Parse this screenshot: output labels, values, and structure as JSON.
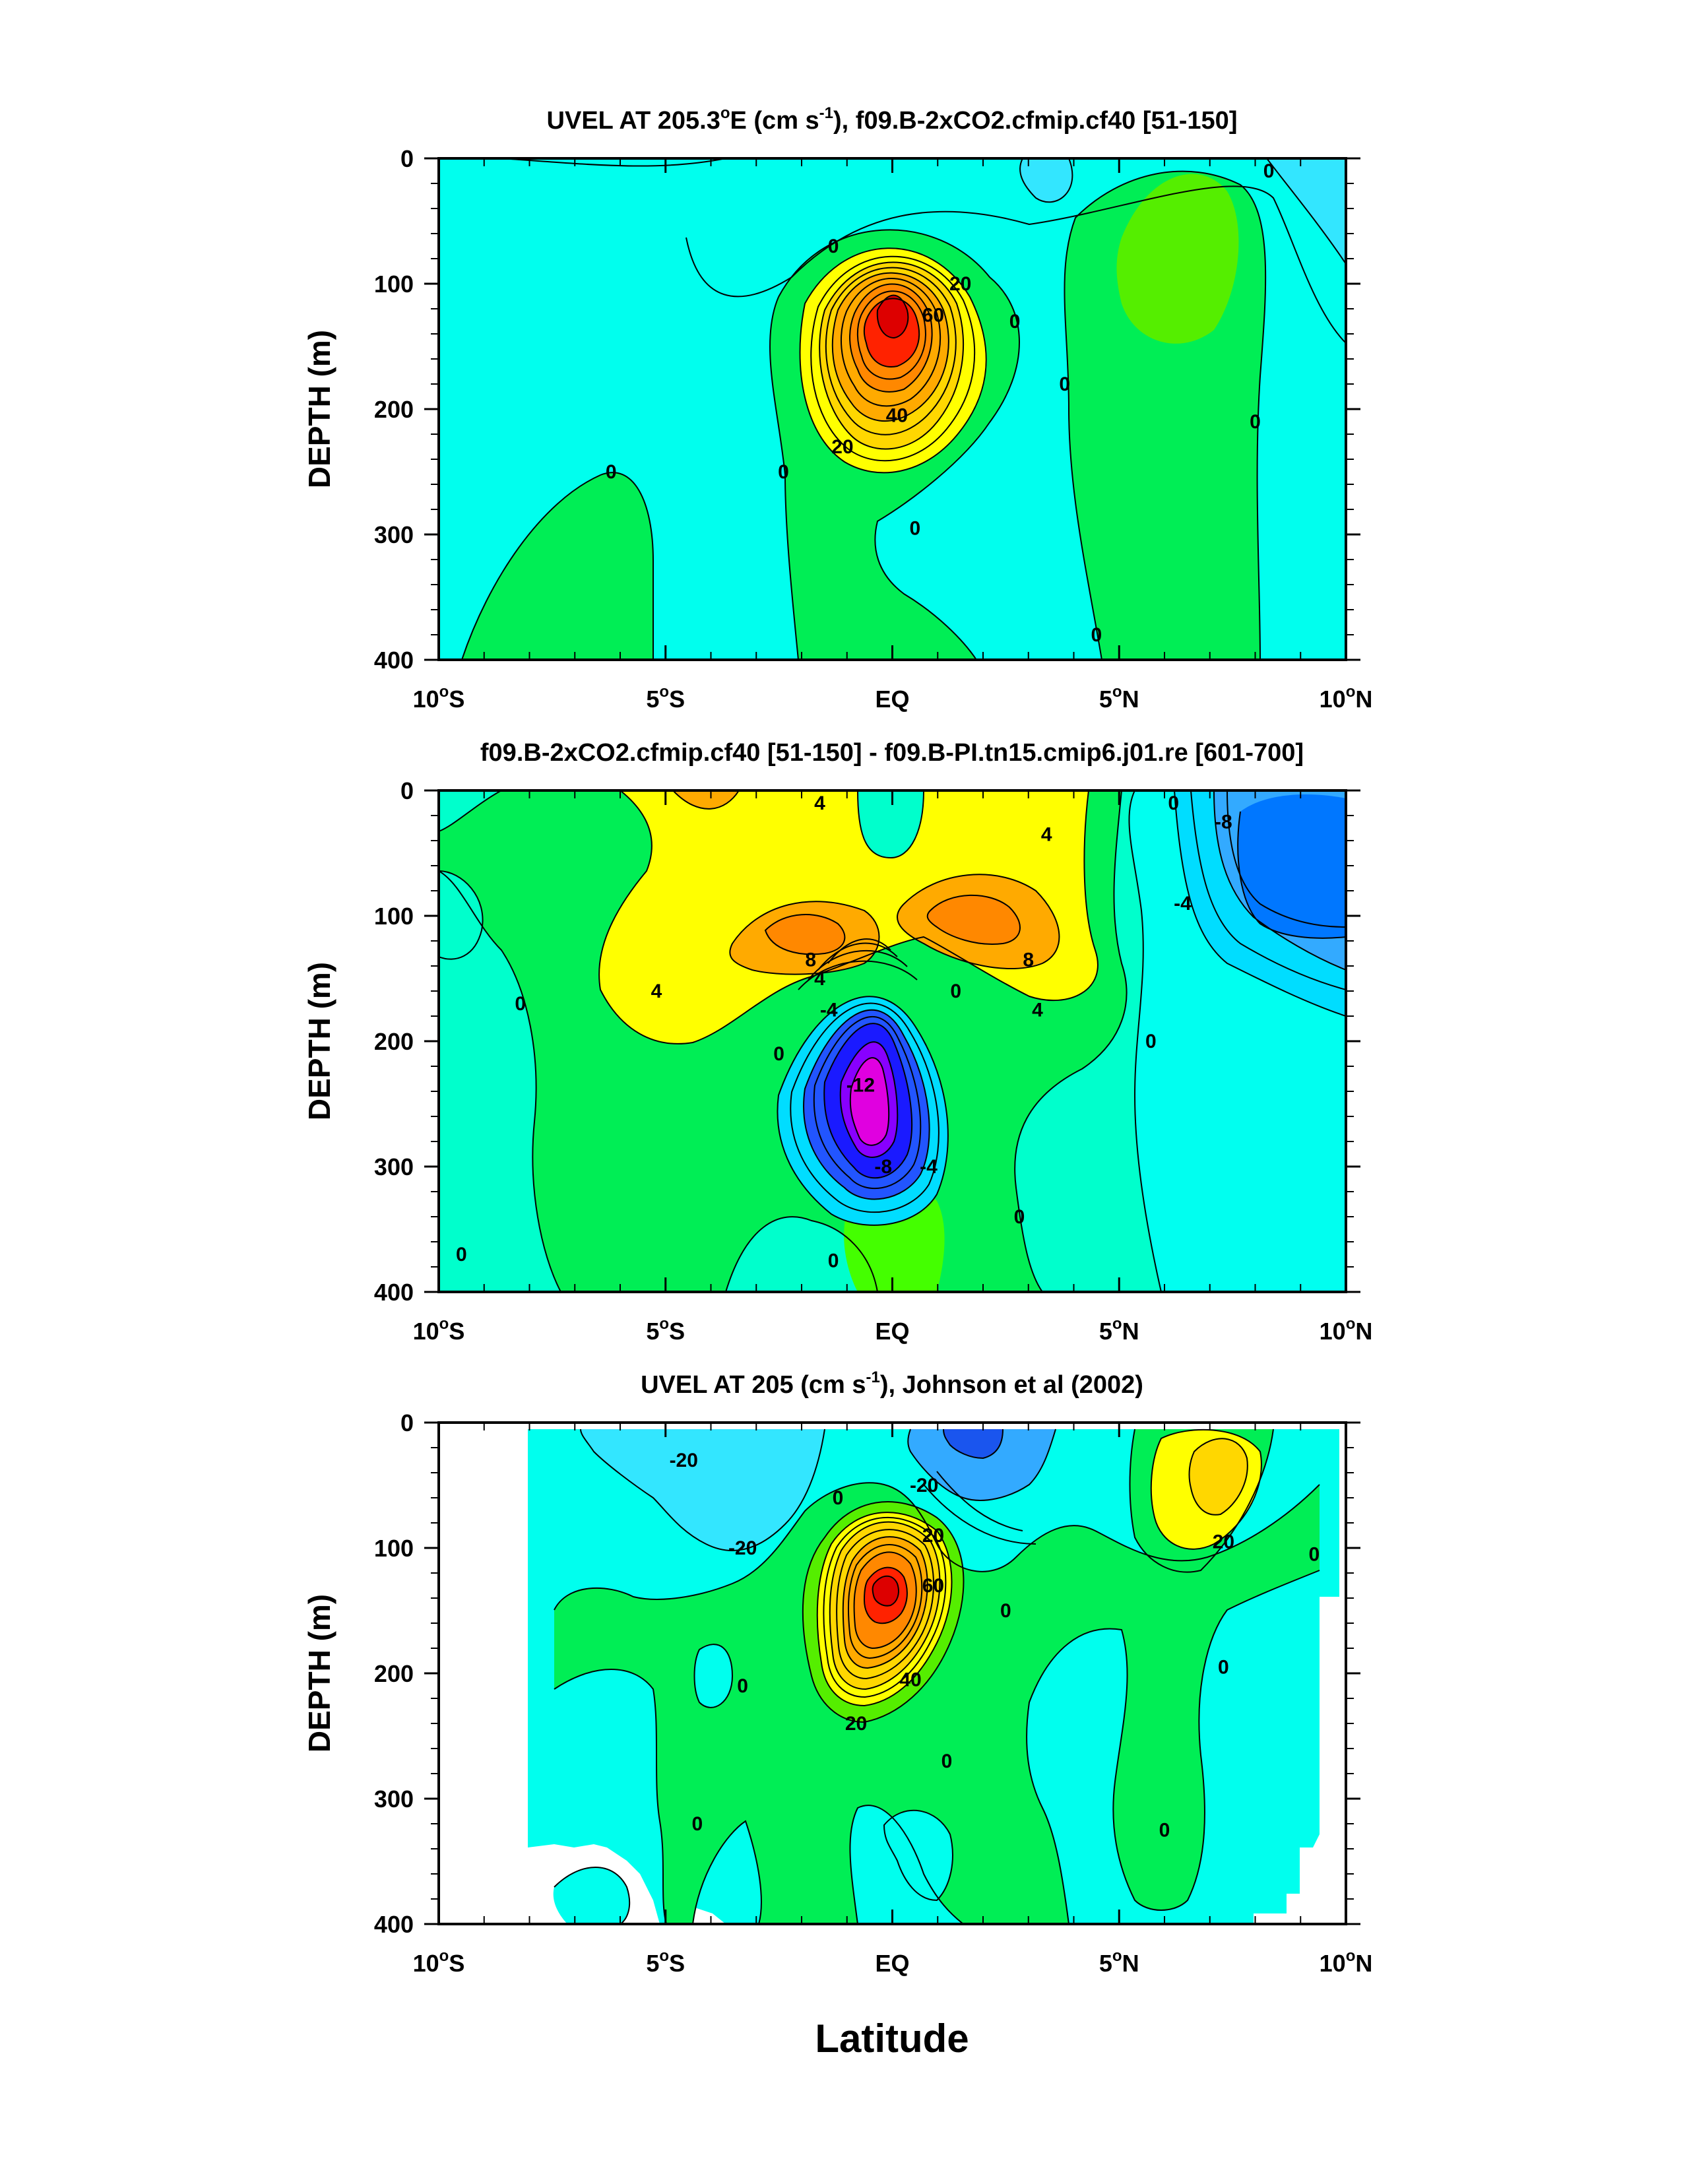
{
  "figure": {
    "xlabel": "Latitude"
  },
  "colors": {
    "cyan": "#00ffee",
    "aqua": "#00fff0",
    "sky": "#33e6ff",
    "lightblue": "#00ddff",
    "blue": "#0088ff",
    "deepblue": "#2255ff",
    "darkblue": "#1a1aff",
    "navy": "#4400ff",
    "purple": "#8800ff",
    "magenta": "#e000e0",
    "aquagreen": "#00ffcc",
    "green": "#00ee55",
    "lime": "#55ee00",
    "brightgreen": "#44ff00",
    "yellow": "#ffff00",
    "gold": "#ffd700",
    "orange": "#ffaa00",
    "darkorange": "#ff8800",
    "red": "#ff2200",
    "darkred": "#dd0000"
  },
  "chart_data": [
    {
      "type": "contour",
      "title": "UVEL AT 205.3°E (cm s-1), f09.B-2xCO2.cfmip.cf40 [51-150]",
      "title_parts": [
        "UVEL AT 205.3",
        "o",
        "E (cm s",
        "-1",
        "), f09.B-2xCO2.cfmip.cf40 [51-150]"
      ],
      "xlabel": "Latitude",
      "ylabel": "DEPTH (m)",
      "xlim": [
        -10,
        10
      ],
      "ylim": [
        400,
        0
      ],
      "x_ticks": [
        {
          "value": -10,
          "label": "10",
          "deg": "o",
          "hemi": "S"
        },
        {
          "value": -5,
          "label": "5",
          "deg": "o",
          "hemi": "S"
        },
        {
          "value": 0,
          "label": "EQ",
          "deg": "",
          "hemi": ""
        },
        {
          "value": 5,
          "label": "5",
          "deg": "o",
          "hemi": "N"
        },
        {
          "value": 10,
          "label": "10",
          "deg": "o",
          "hemi": "N"
        }
      ],
      "y_ticks": [
        0,
        100,
        200,
        300,
        400
      ],
      "contour_labels": [
        {
          "text": "0",
          "lat": -1.3,
          "depth": 70
        },
        {
          "text": "20",
          "lat": 1.5,
          "depth": 100
        },
        {
          "text": "60",
          "lat": 0.9,
          "depth": 125
        },
        {
          "text": "0",
          "lat": 2.7,
          "depth": 130
        },
        {
          "text": "0",
          "lat": 8.3,
          "depth": 10
        },
        {
          "text": "0",
          "lat": 3.8,
          "depth": 180
        },
        {
          "text": "0",
          "lat": 8.0,
          "depth": 210
        },
        {
          "text": "40",
          "lat": 0.1,
          "depth": 205
        },
        {
          "text": "20",
          "lat": -1.1,
          "depth": 230
        },
        {
          "text": "0",
          "lat": -2.4,
          "depth": 250
        },
        {
          "text": "0",
          "lat": -6.2,
          "depth": 250
        },
        {
          "text": "0",
          "lat": 0.5,
          "depth": 295
        },
        {
          "text": "0",
          "lat": 4.5,
          "depth": 380
        }
      ],
      "max_speed_core": {
        "lat": 0,
        "depth": 130
      }
    },
    {
      "type": "contour",
      "title": "f09.B-2xCO2.cfmip.cf40 [51-150] - f09.B-PI.tn15.cmip6.j01.re [601-700]",
      "xlabel": "Latitude",
      "ylabel": "DEPTH (m)",
      "xlim": [
        -10,
        10
      ],
      "ylim": [
        400,
        0
      ],
      "x_ticks": [
        {
          "value": -10,
          "label": "10",
          "deg": "o",
          "hemi": "S"
        },
        {
          "value": -5,
          "label": "5",
          "deg": "o",
          "hemi": "S"
        },
        {
          "value": 0,
          "label": "EQ",
          "deg": "",
          "hemi": ""
        },
        {
          "value": 5,
          "label": "5",
          "deg": "o",
          "hemi": "N"
        },
        {
          "value": 10,
          "label": "10",
          "deg": "o",
          "hemi": "N"
        }
      ],
      "y_ticks": [
        0,
        100,
        200,
        300,
        400
      ],
      "contour_labels": [
        {
          "text": "4",
          "lat": -1.6,
          "depth": 10
        },
        {
          "text": "4",
          "lat": 3.4,
          "depth": 35
        },
        {
          "text": "0",
          "lat": 6.2,
          "depth": 10
        },
        {
          "text": "-8",
          "lat": 7.3,
          "depth": 25
        },
        {
          "text": "-4",
          "lat": 6.4,
          "depth": 90
        },
        {
          "text": "8",
          "lat": -1.8,
          "depth": 135
        },
        {
          "text": "4",
          "lat": -1.6,
          "depth": 150
        },
        {
          "text": "8",
          "lat": 3.0,
          "depth": 135
        },
        {
          "text": "4",
          "lat": -5.2,
          "depth": 160
        },
        {
          "text": "0",
          "lat": -8.2,
          "depth": 170
        },
        {
          "text": "0",
          "lat": 1.4,
          "depth": 160
        },
        {
          "text": "4",
          "lat": 3.2,
          "depth": 175
        },
        {
          "text": "-4",
          "lat": -1.4,
          "depth": 175
        },
        {
          "text": "0",
          "lat": -2.5,
          "depth": 210
        },
        {
          "text": "-12",
          "lat": -0.7,
          "depth": 235
        },
        {
          "text": "0",
          "lat": 5.7,
          "depth": 200
        },
        {
          "text": "-8",
          "lat": -0.2,
          "depth": 300
        },
        {
          "text": "-4",
          "lat": 0.8,
          "depth": 300
        },
        {
          "text": "0",
          "lat": 2.8,
          "depth": 340
        },
        {
          "text": "0",
          "lat": -1.3,
          "depth": 375
        },
        {
          "text": "0",
          "lat": -9.5,
          "depth": 370
        }
      ],
      "max_speed_core": {
        "lat": 0,
        "depth": 230
      }
    },
    {
      "type": "contour",
      "title": "UVEL AT 205 (cm s-1), Johnson et al (2002)",
      "title_parts": [
        "UVEL AT 205 (cm s",
        "-1",
        "), Johnson et al (2002)"
      ],
      "xlabel": "Latitude",
      "ylabel": "DEPTH (m)",
      "xlim": [
        -10,
        10
      ],
      "ylim": [
        400,
        0
      ],
      "x_ticks": [
        {
          "value": -10,
          "label": "10",
          "deg": "o",
          "hemi": "S"
        },
        {
          "value": -5,
          "label": "5",
          "deg": "o",
          "hemi": "S"
        },
        {
          "value": 0,
          "label": "EQ",
          "deg": "",
          "hemi": ""
        },
        {
          "value": 5,
          "label": "5",
          "deg": "o",
          "hemi": "N"
        },
        {
          "value": 10,
          "label": "10",
          "deg": "o",
          "hemi": "N"
        }
      ],
      "y_ticks": [
        0,
        100,
        200,
        300,
        400
      ],
      "contour_labels": [
        {
          "text": "-20",
          "lat": -4.6,
          "depth": 30
        },
        {
          "text": "-20",
          "lat": 0.7,
          "depth": 50
        },
        {
          "text": "0",
          "lat": -1.2,
          "depth": 60
        },
        {
          "text": "-20",
          "lat": -3.3,
          "depth": 100
        },
        {
          "text": "20",
          "lat": 0.9,
          "depth": 90
        },
        {
          "text": "60",
          "lat": 0.9,
          "depth": 130
        },
        {
          "text": "0",
          "lat": 2.5,
          "depth": 150
        },
        {
          "text": "20",
          "lat": 7.3,
          "depth": 95
        },
        {
          "text": "0",
          "lat": 9.3,
          "depth": 105
        },
        {
          "text": "0",
          "lat": 7.3,
          "depth": 195
        },
        {
          "text": "0",
          "lat": -3.3,
          "depth": 210
        },
        {
          "text": "40",
          "lat": 0.4,
          "depth": 205
        },
        {
          "text": "20",
          "lat": -0.8,
          "depth": 240
        },
        {
          "text": "0",
          "lat": 1.2,
          "depth": 270
        },
        {
          "text": "0",
          "lat": -4.3,
          "depth": 320
        },
        {
          "text": "0",
          "lat": 6.0,
          "depth": 325
        }
      ],
      "max_speed_core": {
        "lat": 0,
        "depth": 130
      }
    }
  ]
}
